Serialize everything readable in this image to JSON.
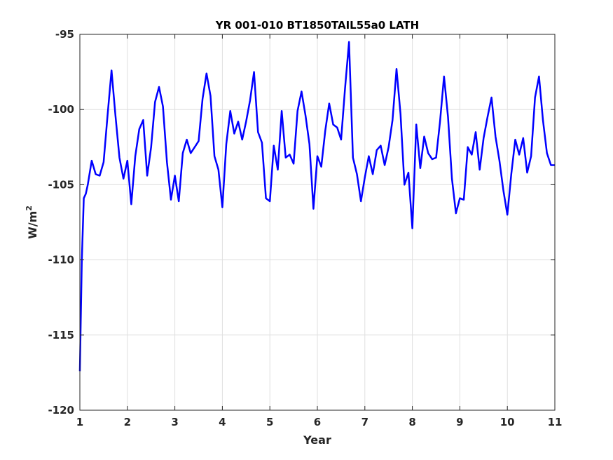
{
  "chart_data": {
    "type": "line",
    "title": "YR 001-010 BT1850TAIL55a0 LATH",
    "xlabel": "Year",
    "ylabel": "W/m",
    "ylabel_superscript": "2",
    "xlim": [
      1,
      11
    ],
    "ylim": [
      -120,
      -95
    ],
    "xticks": [
      "1",
      "2",
      "3",
      "4",
      "5",
      "6",
      "7",
      "8",
      "9",
      "10",
      "11"
    ],
    "yticks": [
      "-95",
      "-100",
      "-105",
      "-110",
      "-115",
      "-120"
    ],
    "grid": true,
    "line_color": "#0000ff",
    "series": [
      {
        "x": [
          1.0,
          1.042,
          1.083,
          1.125,
          1.167,
          1.25,
          1.333,
          1.417,
          1.5,
          1.583,
          1.667,
          1.75,
          1.833,
          1.917,
          2.0,
          2.083,
          2.167,
          2.25,
          2.333,
          2.417,
          2.5,
          2.583,
          2.667,
          2.75,
          2.833,
          2.917,
          3.0,
          3.083,
          3.167,
          3.25,
          3.333,
          3.417,
          3.5,
          3.583,
          3.667,
          3.75,
          3.833,
          3.917,
          4.0,
          4.083,
          4.167,
          4.25,
          4.333,
          4.417,
          4.5,
          4.583,
          4.667,
          4.75,
          4.833,
          4.917,
          5.0,
          5.083,
          5.167,
          5.25,
          5.333,
          5.417,
          5.5,
          5.583,
          5.667,
          5.75,
          5.833,
          5.917,
          6.0,
          6.083,
          6.167,
          6.25,
          6.333,
          6.417,
          6.5,
          6.583,
          6.667,
          6.75,
          6.833,
          6.917,
          7.0,
          7.083,
          7.167,
          7.25,
          7.333,
          7.417,
          7.5,
          7.583,
          7.667,
          7.75,
          7.833,
          7.917,
          8.0,
          8.083,
          8.167,
          8.25,
          8.333,
          8.417,
          8.5,
          8.583,
          8.667,
          8.75,
          8.833,
          8.917,
          9.0,
          9.083,
          9.167,
          9.25,
          9.333,
          9.417,
          9.5,
          9.583,
          9.667,
          9.75,
          9.833,
          9.917,
          10.0,
          10.083,
          10.167,
          10.25,
          10.333,
          10.417,
          10.5,
          10.583,
          10.667,
          10.75,
          10.833,
          10.917,
          11.0
        ],
        "values": [
          -117.4,
          -110.0,
          -105.9,
          -105.6,
          -105.0,
          -103.4,
          -104.3,
          -104.4,
          -103.5,
          -100.4,
          -97.4,
          -100.4,
          -103.2,
          -104.6,
          -103.4,
          -106.3,
          -103.1,
          -101.3,
          -100.7,
          -104.4,
          -102.5,
          -99.5,
          -98.5,
          -99.8,
          -103.5,
          -106.0,
          -104.4,
          -106.1,
          -102.9,
          -102.0,
          -102.9,
          -102.5,
          -102.1,
          -99.3,
          -97.6,
          -99.1,
          -103.1,
          -104.0,
          -106.5,
          -102.3,
          -100.1,
          -101.6,
          -100.8,
          -102.0,
          -100.8,
          -99.4,
          -97.5,
          -101.5,
          -102.2,
          -105.9,
          -106.1,
          -102.4,
          -104.0,
          -100.1,
          -103.2,
          -103.0,
          -103.6,
          -100.1,
          -98.8,
          -100.4,
          -102.3,
          -106.6,
          -103.1,
          -103.8,
          -101.4,
          -99.6,
          -101.0,
          -101.2,
          -102.0,
          -98.6,
          -95.5,
          -103.2,
          -104.3,
          -106.1,
          -104.5,
          -103.1,
          -104.3,
          -102.7,
          -102.4,
          -103.7,
          -102.5,
          -100.7,
          -97.3,
          -100.3,
          -105.0,
          -104.2,
          -107.9,
          -101.0,
          -103.9,
          -101.8,
          -102.9,
          -103.3,
          -103.2,
          -100.8,
          -97.8,
          -100.5,
          -104.6,
          -106.9,
          -105.9,
          -106.0,
          -102.5,
          -103.0,
          -101.5,
          -104.0,
          -101.9,
          -100.5,
          -99.2,
          -101.8,
          -103.4,
          -105.4,
          -107.0,
          -104.3,
          -102.0,
          -103.0,
          -101.9,
          -104.2,
          -103.1,
          -99.2,
          -97.8,
          -100.7,
          -102.9,
          -103.7,
          -103.7
        ]
      }
    ]
  }
}
